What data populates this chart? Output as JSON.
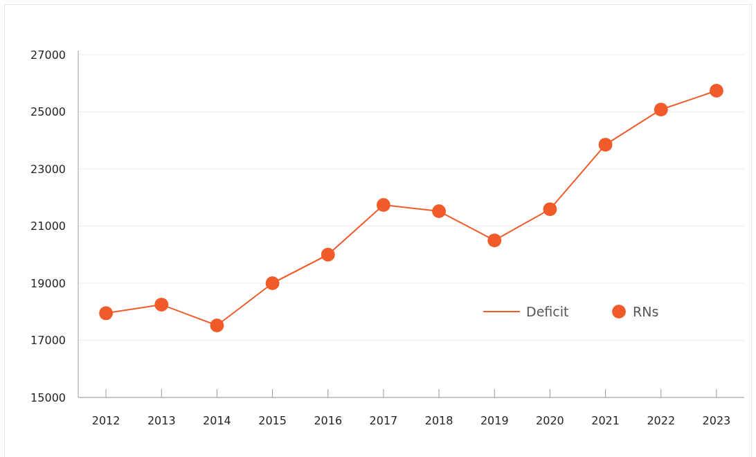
{
  "chart_data": {
    "type": "line",
    "categories": [
      "2012",
      "2013",
      "2014",
      "2015",
      "2016",
      "2017",
      "2018",
      "2019",
      "2020",
      "2021",
      "2022",
      "2023"
    ],
    "series": [
      {
        "name": "Deficit",
        "marker": "none",
        "color": "#f15a29",
        "values": [
          17950,
          18250,
          17520,
          19000,
          20000,
          21740,
          21520,
          20500,
          21590,
          23850,
          25080,
          25740
        ]
      },
      {
        "name": "RNs",
        "type": "scatter",
        "marker": "circle",
        "color": "#f15a29",
        "values": [
          17950,
          18250,
          17520,
          19000,
          20000,
          21740,
          21520,
          20500,
          21590,
          23850,
          25080,
          25740
        ]
      }
    ],
    "ylim": [
      15000,
      27000
    ],
    "yticks": [
      15000,
      17000,
      19000,
      21000,
      23000,
      25000,
      27000
    ],
    "grid": "y",
    "legend": "right"
  }
}
